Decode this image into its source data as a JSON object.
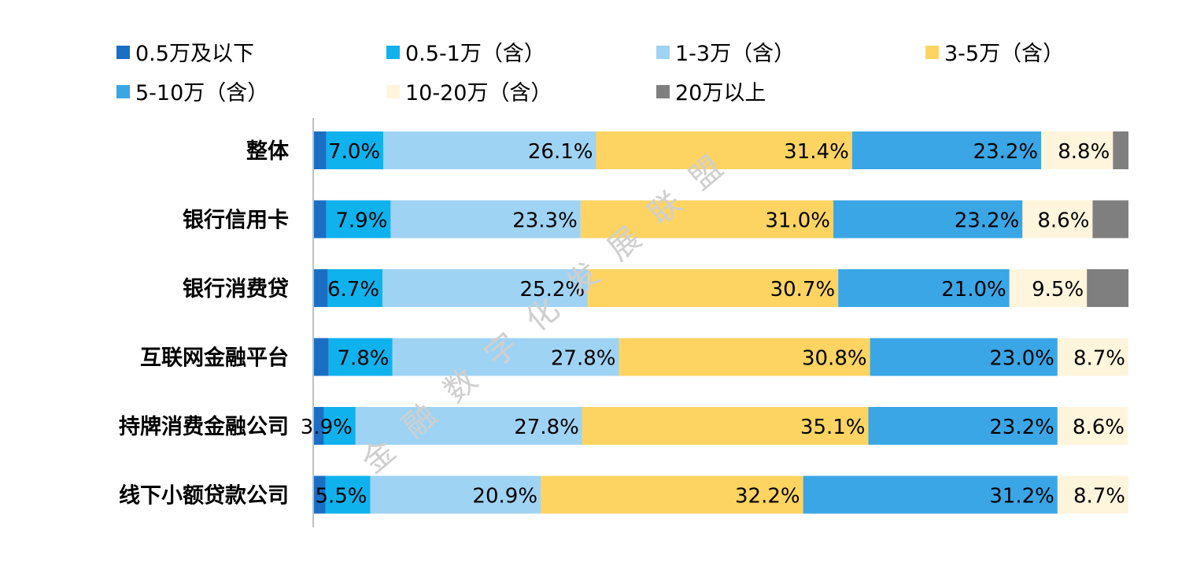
{
  "chart_data": {
    "type": "bar",
    "orientation": "horizontal",
    "stacked": true,
    "percent": true,
    "title": "",
    "xlabel": "",
    "ylabel": "",
    "xlim": [
      0,
      100
    ],
    "grid": false,
    "legend_position": "top",
    "categories": [
      "整体",
      "银行信用卡",
      "银行消费贷",
      "互联网金融平台",
      "持牌消费金融公司",
      "线下小额贷款公司"
    ],
    "series": [
      {
        "name": "0.5万及以下",
        "color": "#1a6fc4",
        "values": [
          1.6,
          1.6,
          1.8,
          1.9,
          1.3,
          1.5
        ],
        "labels": [
          "",
          "",
          "",
          "",
          "",
          ""
        ]
      },
      {
        "name": "0.5-1万（含）",
        "color": "#10b2ee",
        "values": [
          7.0,
          7.9,
          6.7,
          7.8,
          3.9,
          5.5
        ],
        "labels": [
          "7.0%",
          "7.9%",
          "6.7%",
          "7.8%",
          "3.9%",
          "5.5%"
        ]
      },
      {
        "name": "1-3万（含）",
        "color": "#9fd3f3",
        "values": [
          26.1,
          23.3,
          25.2,
          27.8,
          27.8,
          20.9
        ],
        "labels": [
          "26.1%",
          "23.3%",
          "25.2%",
          "27.8%",
          "27.8%",
          "20.9%"
        ]
      },
      {
        "name": "3-5万（含）",
        "color": "#fdd461",
        "values": [
          31.4,
          31.0,
          30.7,
          30.8,
          35.1,
          32.2
        ],
        "labels": [
          "31.4%",
          "31.0%",
          "30.7%",
          "30.8%",
          "35.1%",
          "32.2%"
        ]
      },
      {
        "name": "5-10万（含）",
        "color": "#3aa6e6",
        "values": [
          23.2,
          23.2,
          21.0,
          23.0,
          23.2,
          31.2
        ],
        "labels": [
          "23.2%",
          "23.2%",
          "21.0%",
          "23.0%",
          "23.2%",
          "31.2%"
        ]
      },
      {
        "name": "10-20万（含）",
        "color": "#fff5dc",
        "values": [
          8.8,
          8.6,
          9.5,
          8.7,
          8.6,
          8.7
        ],
        "labels": [
          "8.8%",
          "8.6%",
          "9.5%",
          "8.7%",
          "8.6%",
          "8.7%"
        ]
      },
      {
        "name": "20万以上",
        "color": "#7f7f7f",
        "values": [
          1.9,
          5.1,
          5.1,
          0,
          0,
          0
        ],
        "labels": [
          "",
          "",
          "",
          "",
          "",
          ""
        ]
      }
    ]
  },
  "watermark": "金融数字化发展联盟"
}
